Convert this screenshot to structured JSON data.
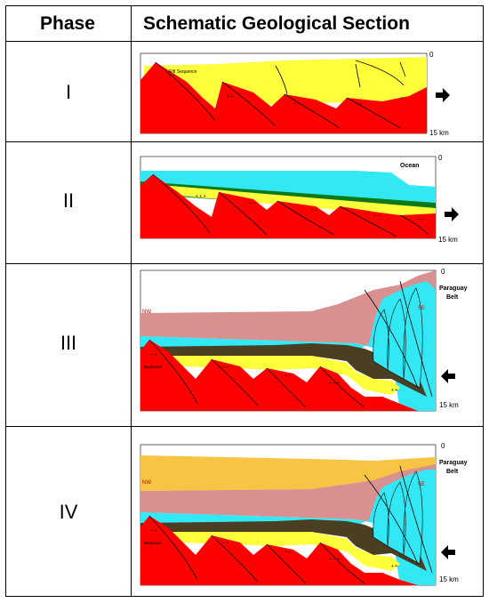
{
  "header": {
    "phase_label": "Phase",
    "section_label": "Schematic Geological Section"
  },
  "phases": [
    {
      "numeral": "I",
      "depth_top": "0",
      "depth_bottom": "15 km",
      "labels": {
        "sequence": "Rift Sequence"
      }
    },
    {
      "numeral": "II",
      "depth_top": "0",
      "depth_bottom": "15 km",
      "labels": {
        "ocean": "Ocean"
      }
    },
    {
      "numeral": "III",
      "depth_top": "0",
      "depth_bottom": "15 km",
      "labels": {
        "nw": "NW",
        "se": "SE",
        "belt_line1": "Paraguay",
        "belt_line2": "Belt",
        "basement": "Basement"
      }
    },
    {
      "numeral": "IV",
      "depth_top": "0",
      "depth_bottom": "15 km",
      "labels": {
        "nw": "NW",
        "se": "SE",
        "belt_line1": "Paraguay",
        "belt_line2": "Belt",
        "basement": "Basement"
      }
    }
  ],
  "colors": {
    "basement": "#ff0000",
    "rift_sequence": "#ffff3c",
    "ocean": "#33e8f5",
    "dark_green": "#0c7a1a",
    "dark_brown": "#4a3f22",
    "pink": "#d99090",
    "orange": "#f7c443",
    "arrow": "#000000"
  },
  "arrows": [
    "right",
    "right",
    "left",
    "left"
  ]
}
